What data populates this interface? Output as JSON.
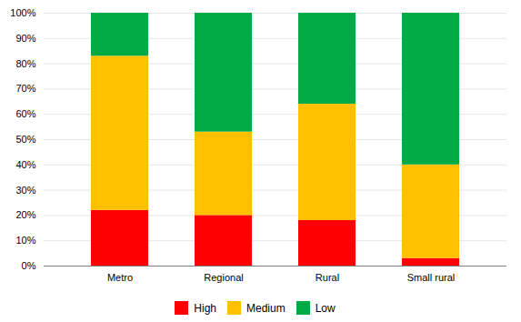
{
  "chart_data": {
    "type": "bar",
    "stacked": true,
    "categories": [
      "Metro",
      "Regional",
      "Rural",
      "Small rural"
    ],
    "series": [
      {
        "name": "High",
        "color": "#FF0000",
        "values": [
          22,
          20,
          18,
          3
        ]
      },
      {
        "name": "Medium",
        "color": "#FFC000",
        "values": [
          61,
          33,
          46,
          37
        ]
      },
      {
        "name": "Low",
        "color": "#00AA44",
        "values": [
          17,
          47,
          36,
          60
        ]
      }
    ],
    "ylim": [
      0,
      100
    ],
    "yticks": [
      {
        "value": 0,
        "label": "0%"
      },
      {
        "value": 10,
        "label": "10%"
      },
      {
        "value": 20,
        "label": "20%"
      },
      {
        "value": 30,
        "label": "30%"
      },
      {
        "value": 40,
        "label": "40%"
      },
      {
        "value": 50,
        "label": "50%"
      },
      {
        "value": 60,
        "label": "60%"
      },
      {
        "value": 70,
        "label": "70%"
      },
      {
        "value": 80,
        "label": "80%"
      },
      {
        "value": 90,
        "label": "90%"
      },
      {
        "value": 100,
        "label": "100%"
      }
    ],
    "grid": true,
    "legend": "bottom"
  }
}
